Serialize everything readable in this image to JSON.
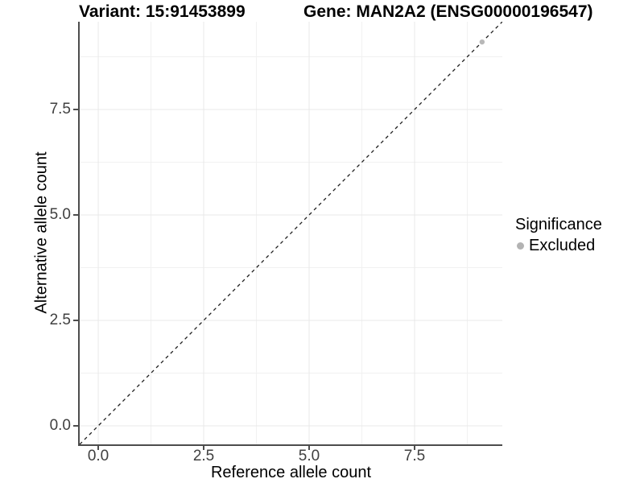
{
  "header": {
    "variant_title": "Variant: 15:91453899",
    "gene_title": "Gene: MAN2A2 (ENSG00000196547)"
  },
  "chart_data": {
    "type": "scatter",
    "xlabel": "Reference allele count",
    "ylabel": "Alternative allele count",
    "xlim": [
      -0.44,
      9.58
    ],
    "ylim": [
      -0.44,
      9.58
    ],
    "x_ticks": [
      0.0,
      2.5,
      5.0,
      7.5
    ],
    "x_tick_labels": [
      "0.0",
      "2.5",
      "5.0",
      "7.5"
    ],
    "y_ticks": [
      0.0,
      2.5,
      5.0,
      7.5
    ],
    "y_tick_labels": [
      "0.0",
      "2.5",
      "5.0",
      "7.5"
    ],
    "x_minor_ticks": [
      1.25,
      3.75,
      6.25,
      8.75
    ],
    "y_minor_ticks": [
      1.25,
      3.75,
      6.25,
      8.75
    ],
    "grid": true,
    "reference_line": {
      "style": "dashed",
      "from": [
        -0.44,
        -0.44
      ],
      "to": [
        9.58,
        9.58
      ]
    },
    "series": [
      {
        "name": "Excluded",
        "color": "#b8b8b8",
        "points": [
          [
            9.1,
            9.1
          ]
        ]
      }
    ],
    "legend": {
      "position": "right",
      "title": "Significance",
      "entries": [
        {
          "label": "Excluded",
          "color": "#b3b3b3"
        }
      ]
    }
  },
  "colors": {
    "grid_major": "#e9e9e9",
    "grid_minor": "#f1f1f1",
    "axis_line": "#4d4d4d",
    "reference_line": "#1f1f1f",
    "tick_label": "#404040"
  }
}
